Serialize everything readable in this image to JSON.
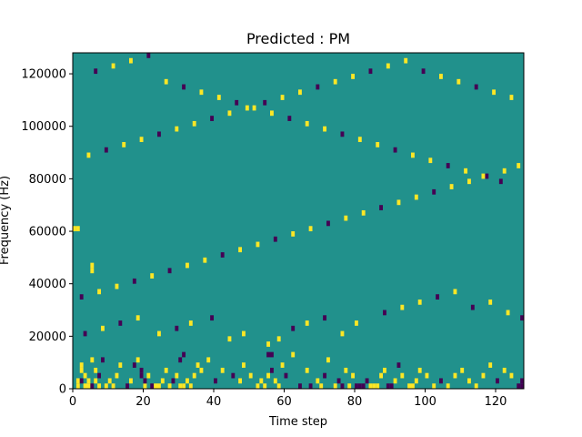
{
  "chart_data": {
    "type": "heatmap",
    "title": "Predicted : PM",
    "xlabel": "Time step",
    "ylabel": "Frequency (Hz)",
    "xlim": [
      0,
      128
    ],
    "ylim": [
      0,
      128000
    ],
    "xticks": [
      0,
      20,
      40,
      60,
      80,
      100,
      120
    ],
    "yticks": [
      0,
      20000,
      40000,
      60000,
      80000,
      100000,
      120000
    ],
    "xtick_labels": [
      "0",
      "20",
      "40",
      "60",
      "80",
      "100",
      "120"
    ],
    "ytick_labels": [
      "0",
      "20000",
      "40000",
      "60000",
      "80000",
      "100000",
      "120000"
    ],
    "n_time_steps": 128,
    "n_freq_bins": 64,
    "freq_bin_hz": 2000,
    "levels": {
      "background": 0.5,
      "high": 1,
      "low": 0
    },
    "colormap": {
      "low": "#440154",
      "mid": "#21918c",
      "high": "#fde725"
    },
    "cells": [
      [
        1,
        0,
        1
      ],
      [
        1,
        1,
        1
      ],
      [
        2,
        3,
        1
      ],
      [
        2,
        4,
        1
      ],
      [
        2,
        1,
        0
      ],
      [
        3,
        0,
        1
      ],
      [
        4,
        1,
        1
      ],
      [
        4,
        0,
        1
      ],
      [
        3,
        2,
        1
      ],
      [
        5,
        0,
        0
      ],
      [
        5,
        5,
        1
      ],
      [
        6,
        1,
        1
      ],
      [
        6,
        3,
        1
      ],
      [
        7,
        0,
        1
      ],
      [
        7,
        2,
        0
      ],
      [
        8,
        5,
        0
      ],
      [
        9,
        0,
        1
      ],
      [
        10,
        1,
        1
      ],
      [
        11,
        0,
        1
      ],
      [
        12,
        2,
        1
      ],
      [
        13,
        4,
        1
      ],
      [
        15,
        0,
        0
      ],
      [
        16,
        1,
        1
      ],
      [
        17,
        4,
        0
      ],
      [
        18,
        5,
        1
      ],
      [
        19,
        2,
        0
      ],
      [
        19,
        3,
        0
      ],
      [
        20,
        0,
        1
      ],
      [
        20,
        1,
        0
      ],
      [
        21,
        2,
        1
      ],
      [
        22,
        0,
        0
      ],
      [
        23,
        0,
        1
      ],
      [
        24,
        0,
        1
      ],
      [
        25,
        1,
        1
      ],
      [
        26,
        3,
        1
      ],
      [
        27,
        0,
        1
      ],
      [
        28,
        1,
        0
      ],
      [
        29,
        2,
        1
      ],
      [
        30,
        0,
        1
      ],
      [
        31,
        0,
        1
      ],
      [
        32,
        1,
        1
      ],
      [
        33,
        0,
        1
      ],
      [
        34,
        2,
        1
      ],
      [
        35,
        4,
        1
      ],
      [
        36,
        3,
        1
      ],
      [
        38,
        5,
        1
      ],
      [
        40,
        1,
        0
      ],
      [
        42,
        3,
        1
      ],
      [
        45,
        2,
        0
      ],
      [
        47,
        1,
        1
      ],
      [
        48,
        4,
        1
      ],
      [
        50,
        2,
        1
      ],
      [
        52,
        0,
        1
      ],
      [
        53,
        1,
        1
      ],
      [
        54,
        0,
        1
      ],
      [
        55,
        2,
        1
      ],
      [
        56,
        3,
        0
      ],
      [
        57,
        1,
        1
      ],
      [
        58,
        0,
        1
      ],
      [
        59,
        4,
        1
      ],
      [
        60,
        2,
        0
      ],
      [
        62,
        6,
        1
      ],
      [
        64,
        0,
        0
      ],
      [
        66,
        3,
        1
      ],
      [
        67,
        0,
        0
      ],
      [
        69,
        1,
        1
      ],
      [
        70,
        0,
        1
      ],
      [
        71,
        2,
        0
      ],
      [
        72,
        5,
        1
      ],
      [
        74,
        0,
        1
      ],
      [
        75,
        1,
        0
      ],
      [
        76,
        0,
        0
      ],
      [
        77,
        3,
        1
      ],
      [
        78,
        0,
        1
      ],
      [
        79,
        2,
        1
      ],
      [
        80,
        0,
        0
      ],
      [
        81,
        0,
        0
      ],
      [
        82,
        0,
        0
      ],
      [
        83,
        1,
        0
      ],
      [
        84,
        0,
        1
      ],
      [
        85,
        0,
        1
      ],
      [
        86,
        0,
        1
      ],
      [
        87,
        2,
        1
      ],
      [
        88,
        3,
        1
      ],
      [
        89,
        0,
        0
      ],
      [
        90,
        0,
        0
      ],
      [
        91,
        1,
        1
      ],
      [
        92,
        4,
        0
      ],
      [
        93,
        2,
        1
      ],
      [
        95,
        0,
        1
      ],
      [
        96,
        0,
        1
      ],
      [
        97,
        1,
        1
      ],
      [
        98,
        3,
        1
      ],
      [
        100,
        2,
        1
      ],
      [
        102,
        0,
        1
      ],
      [
        104,
        1,
        0
      ],
      [
        106,
        0,
        1
      ],
      [
        108,
        2,
        1
      ],
      [
        110,
        3,
        1
      ],
      [
        112,
        1,
        1
      ],
      [
        114,
        0,
        1
      ],
      [
        116,
        2,
        1
      ],
      [
        118,
        4,
        1
      ],
      [
        120,
        1,
        0
      ],
      [
        122,
        3,
        1
      ],
      [
        124,
        2,
        1
      ],
      [
        126,
        0,
        0
      ],
      [
        127,
        0,
        0
      ],
      [
        127,
        1,
        0
      ],
      [
        48,
        10,
        1
      ],
      [
        55,
        8,
        1
      ],
      [
        58,
        9,
        1
      ],
      [
        62,
        11,
        0
      ],
      [
        66,
        12,
        1
      ],
      [
        71,
        13,
        0
      ],
      [
        76,
        10,
        1
      ],
      [
        80,
        12,
        1
      ],
      [
        3,
        10,
        0
      ],
      [
        8,
        11,
        1
      ],
      [
        13,
        12,
        0
      ],
      [
        18,
        13,
        1
      ],
      [
        24,
        10,
        1
      ],
      [
        29,
        11,
        0
      ],
      [
        33,
        12,
        1
      ],
      [
        39,
        13,
        0
      ],
      [
        44,
        9,
        1
      ],
      [
        88,
        14,
        0
      ],
      [
        93,
        15,
        1
      ],
      [
        98,
        16,
        1
      ],
      [
        103,
        17,
        0
      ],
      [
        108,
        18,
        1
      ],
      [
        113,
        15,
        0
      ],
      [
        118,
        16,
        1
      ],
      [
        123,
        14,
        1
      ],
      [
        127,
        13,
        0
      ],
      [
        2,
        17,
        0
      ],
      [
        7,
        18,
        1
      ],
      [
        12,
        19,
        1
      ],
      [
        17,
        20,
        0
      ],
      [
        22,
        21,
        1
      ],
      [
        27,
        22,
        0
      ],
      [
        32,
        23,
        1
      ],
      [
        37,
        24,
        1
      ],
      [
        42,
        25,
        0
      ],
      [
        47,
        26,
        1
      ],
      [
        52,
        27,
        1
      ],
      [
        57,
        28,
        0
      ],
      [
        62,
        29,
        1
      ],
      [
        67,
        30,
        1
      ],
      [
        72,
        31,
        0
      ],
      [
        77,
        32,
        1
      ],
      [
        82,
        33,
        1
      ],
      [
        87,
        34,
        0
      ],
      [
        92,
        35,
        1
      ],
      [
        97,
        36,
        1
      ],
      [
        102,
        37,
        0
      ],
      [
        107,
        38,
        1
      ],
      [
        112,
        39,
        1
      ],
      [
        117,
        40,
        0
      ],
      [
        122,
        41,
        1
      ],
      [
        126,
        42,
        1
      ],
      [
        4,
        44,
        1
      ],
      [
        9,
        45,
        0
      ],
      [
        14,
        46,
        1
      ],
      [
        19,
        47,
        1
      ],
      [
        24,
        48,
        0
      ],
      [
        29,
        49,
        1
      ],
      [
        34,
        50,
        1
      ],
      [
        39,
        51,
        0
      ],
      [
        44,
        52,
        1
      ],
      [
        49,
        53,
        1
      ],
      [
        54,
        54,
        0
      ],
      [
        59,
        55,
        1
      ],
      [
        64,
        56,
        1
      ],
      [
        69,
        57,
        0
      ],
      [
        74,
        58,
        1
      ],
      [
        79,
        59,
        1
      ],
      [
        84,
        60,
        0
      ],
      [
        89,
        61,
        1
      ],
      [
        94,
        62,
        1
      ],
      [
        99,
        60,
        0
      ],
      [
        104,
        59,
        1
      ],
      [
        109,
        58,
        1
      ],
      [
        114,
        57,
        0
      ],
      [
        119,
        56,
        1
      ],
      [
        124,
        55,
        1
      ],
      [
        6,
        60,
        0
      ],
      [
        11,
        61,
        1
      ],
      [
        16,
        62,
        1
      ],
      [
        21,
        63,
        0
      ],
      [
        26,
        58,
        1
      ],
      [
        31,
        57,
        0
      ],
      [
        36,
        56,
        1
      ],
      [
        41,
        55,
        1
      ],
      [
        46,
        54,
        0
      ],
      [
        51,
        53,
        1
      ],
      [
        56,
        52,
        1
      ],
      [
        61,
        51,
        0
      ],
      [
        66,
        50,
        1
      ],
      [
        71,
        49,
        1
      ],
      [
        76,
        48,
        0
      ],
      [
        81,
        47,
        1
      ],
      [
        86,
        46,
        1
      ],
      [
        91,
        45,
        0
      ],
      [
        96,
        44,
        1
      ],
      [
        101,
        43,
        1
      ],
      [
        106,
        42,
        0
      ],
      [
        111,
        41,
        1
      ],
      [
        116,
        40,
        1
      ],
      [
        121,
        39,
        0
      ],
      [
        0,
        30,
        1
      ],
      [
        1,
        30,
        1
      ],
      [
        5,
        22,
        1
      ],
      [
        5,
        23,
        1
      ],
      [
        30,
        5,
        0
      ],
      [
        31,
        6,
        0
      ],
      [
        55,
        6,
        0
      ],
      [
        56,
        6,
        0
      ]
    ]
  }
}
